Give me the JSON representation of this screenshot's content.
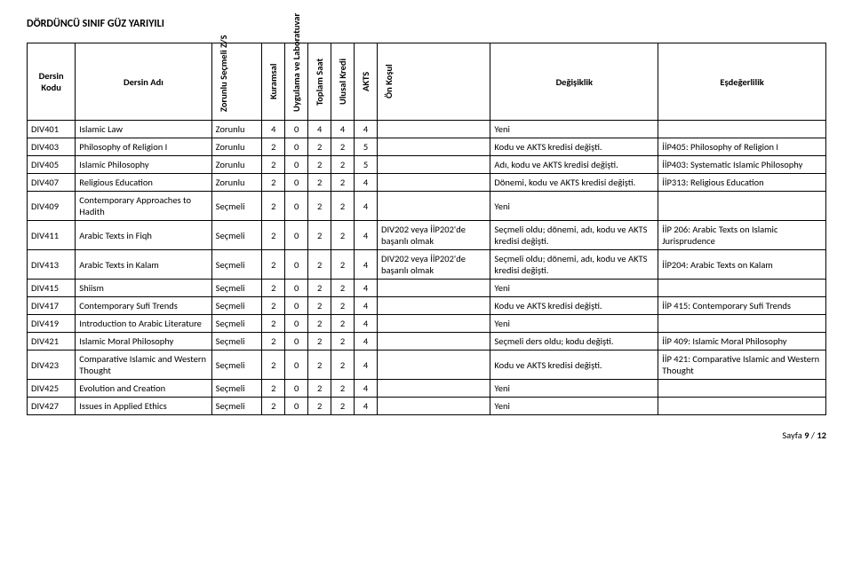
{
  "title": "DÖRDÜNCÜ SINIF GÜZ YARIYILI",
  "headers": {
    "code": "Dersin Kodu",
    "name": "Dersin Adı",
    "zs": "Zorunlu Seçmeli Z/S",
    "kuramsal": "Kuramsal",
    "uyg": "Uygulama ve Laboratuvar",
    "toplam": "Toplam Saat",
    "ulusal": "Ulusal Kredi",
    "akts": "AKTS",
    "onkosul": "Ön Koşul",
    "degisiklik": "Değişiklik",
    "esdeger": "Eşdeğerlilik"
  },
  "rows": [
    {
      "code": "DIV401",
      "name": "Islamic Law",
      "zs": "Zorunlu",
      "k": "4",
      "u": "0",
      "t": "4",
      "kr": "4",
      "a": "4",
      "pre": "",
      "chg": "Yeni",
      "eq": ""
    },
    {
      "code": "DIV403",
      "name": "Philosophy of Religion I",
      "zs": "Zorunlu",
      "k": "2",
      "u": "0",
      "t": "2",
      "kr": "2",
      "a": "5",
      "pre": "",
      "chg": "Kodu ve AKTS kredisi değişti.",
      "eq": "İİP405: Philosophy of Religion I"
    },
    {
      "code": "DIV405",
      "name": "Islamic Philosophy",
      "zs": "Zorunlu",
      "k": "2",
      "u": "0",
      "t": "2",
      "kr": "2",
      "a": "5",
      "pre": "",
      "chg": "Adı, kodu ve AKTS kredisi değişti.",
      "eq": "İİP403: Systematic Islamic Philosophy"
    },
    {
      "code": "DIV407",
      "name": "Religious Education",
      "zs": "Zorunlu",
      "k": "2",
      "u": "0",
      "t": "2",
      "kr": "2",
      "a": "4",
      "pre": "",
      "chg": "Dönemi, kodu ve AKTS kredisi değişti.",
      "eq": "İİP313: Religious Education"
    },
    {
      "code": "DIV409",
      "name": "Contemporary Approaches to Hadith",
      "zs": "Seçmeli",
      "k": "2",
      "u": "0",
      "t": "2",
      "kr": "2",
      "a": "4",
      "pre": "",
      "chg": "Yeni",
      "eq": ""
    },
    {
      "code": "DIV411",
      "name": "Arabic Texts in Fiqh",
      "zs": "Seçmeli",
      "k": "2",
      "u": "0",
      "t": "2",
      "kr": "2",
      "a": "4",
      "pre": "DIV202 veya İİP202'de başarılı olmak",
      "chg": "Seçmeli oldu; dönemi, adı, kodu ve AKTS kredisi değişti.",
      "eq": "İİP 206: Arabic Texts on Islamic Jurisprudence"
    },
    {
      "code": "DIV413",
      "name": "Arabic Texts in Kalam",
      "zs": "Seçmeli",
      "k": "2",
      "u": "0",
      "t": "2",
      "kr": "2",
      "a": "4",
      "pre": "DIV202 veya İİP202'de başarılı olmak",
      "chg": "Seçmeli oldu; dönemi, adı, kodu ve AKTS kredisi değişti.",
      "eq": "İİP204: Arabic Texts on Kalam"
    },
    {
      "code": "DIV415",
      "name": "Shiism",
      "zs": "Seçmeli",
      "k": "2",
      "u": "0",
      "t": "2",
      "kr": "2",
      "a": "4",
      "pre": "",
      "chg": "Yeni",
      "eq": ""
    },
    {
      "code": "DIV417",
      "name": "Contemporary Sufi Trends",
      "zs": "Seçmeli",
      "k": "2",
      "u": "0",
      "t": "2",
      "kr": "2",
      "a": "4",
      "pre": "",
      "chg": "Kodu ve AKTS kredisi değişti.",
      "eq": "İİP 415: Contemporary Sufi Trends"
    },
    {
      "code": "DIV419",
      "name": "Introduction to Arabic Literature",
      "zs": "Seçmeli",
      "k": "2",
      "u": "0",
      "t": "2",
      "kr": "2",
      "a": "4",
      "pre": "",
      "chg": "Yeni",
      "eq": ""
    },
    {
      "code": "DIV421",
      "name": "Islamic Moral Philosophy",
      "zs": "Seçmeli",
      "k": "2",
      "u": "0",
      "t": "2",
      "kr": "2",
      "a": "4",
      "pre": "",
      "chg": "Seçmeli ders oldu; kodu değişti.",
      "eq": "İİP 409: Islamic Moral Philosophy"
    },
    {
      "code": "DIV423",
      "name": "Comparative Islamic and Western Thought",
      "zs": "Seçmeli",
      "k": "2",
      "u": "0",
      "t": "2",
      "kr": "2",
      "a": "4",
      "pre": "",
      "chg": "Kodu ve AKTS kredisi değişti.",
      "eq": "İİP 421: Comparative Islamic and Western Thought"
    },
    {
      "code": "DIV425",
      "name": "Evolution and Creation",
      "zs": "Seçmeli",
      "k": "2",
      "u": "0",
      "t": "2",
      "kr": "2",
      "a": "4",
      "pre": "",
      "chg": "Yeni",
      "eq": ""
    },
    {
      "code": "DIV427",
      "name": "Issues in Applied Ethics",
      "zs": "Seçmeli",
      "k": "2",
      "u": "0",
      "t": "2",
      "kr": "2",
      "a": "4",
      "pre": "",
      "chg": "Yeni",
      "eq": ""
    }
  ],
  "footer": {
    "label": "Sayfa ",
    "current": "9",
    "sep": " / ",
    "total": "12"
  }
}
